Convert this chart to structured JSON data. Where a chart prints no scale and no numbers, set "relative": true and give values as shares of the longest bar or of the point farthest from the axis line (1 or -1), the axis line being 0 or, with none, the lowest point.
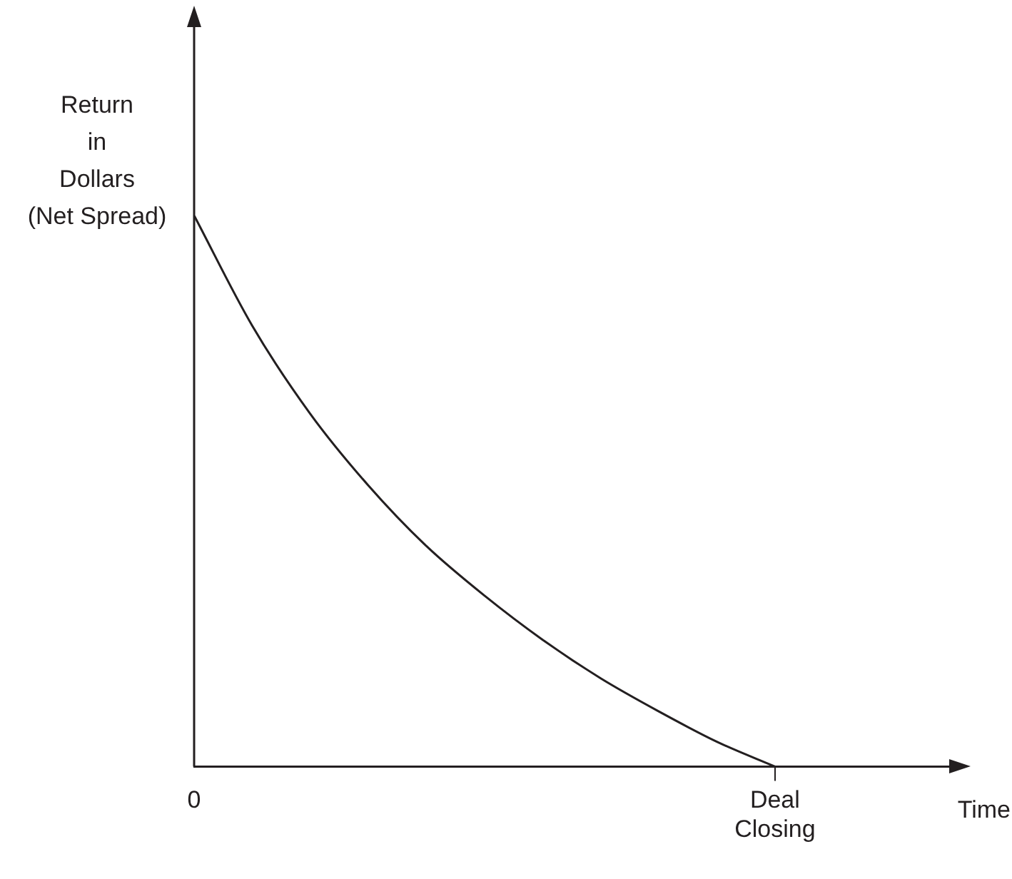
{
  "chart_data": {
    "type": "line",
    "relative": true,
    "ylabel": "Return in Dollars (Net Spread)",
    "xlabel": "Time",
    "categories": [
      "0",
      null,
      null,
      null,
      null,
      null,
      null,
      null,
      null,
      null,
      "Deal Closing",
      null,
      null,
      null
    ],
    "values": [
      1,
      0.8,
      0.64,
      0.51,
      0.4,
      0.31,
      0.23,
      0.16,
      0.1,
      0.045,
      0,
      null,
      null,
      null
    ],
    "color": "#231f20",
    "grid": false,
    "legend": false,
    "marker": "none",
    "line_style": "solid"
  }
}
